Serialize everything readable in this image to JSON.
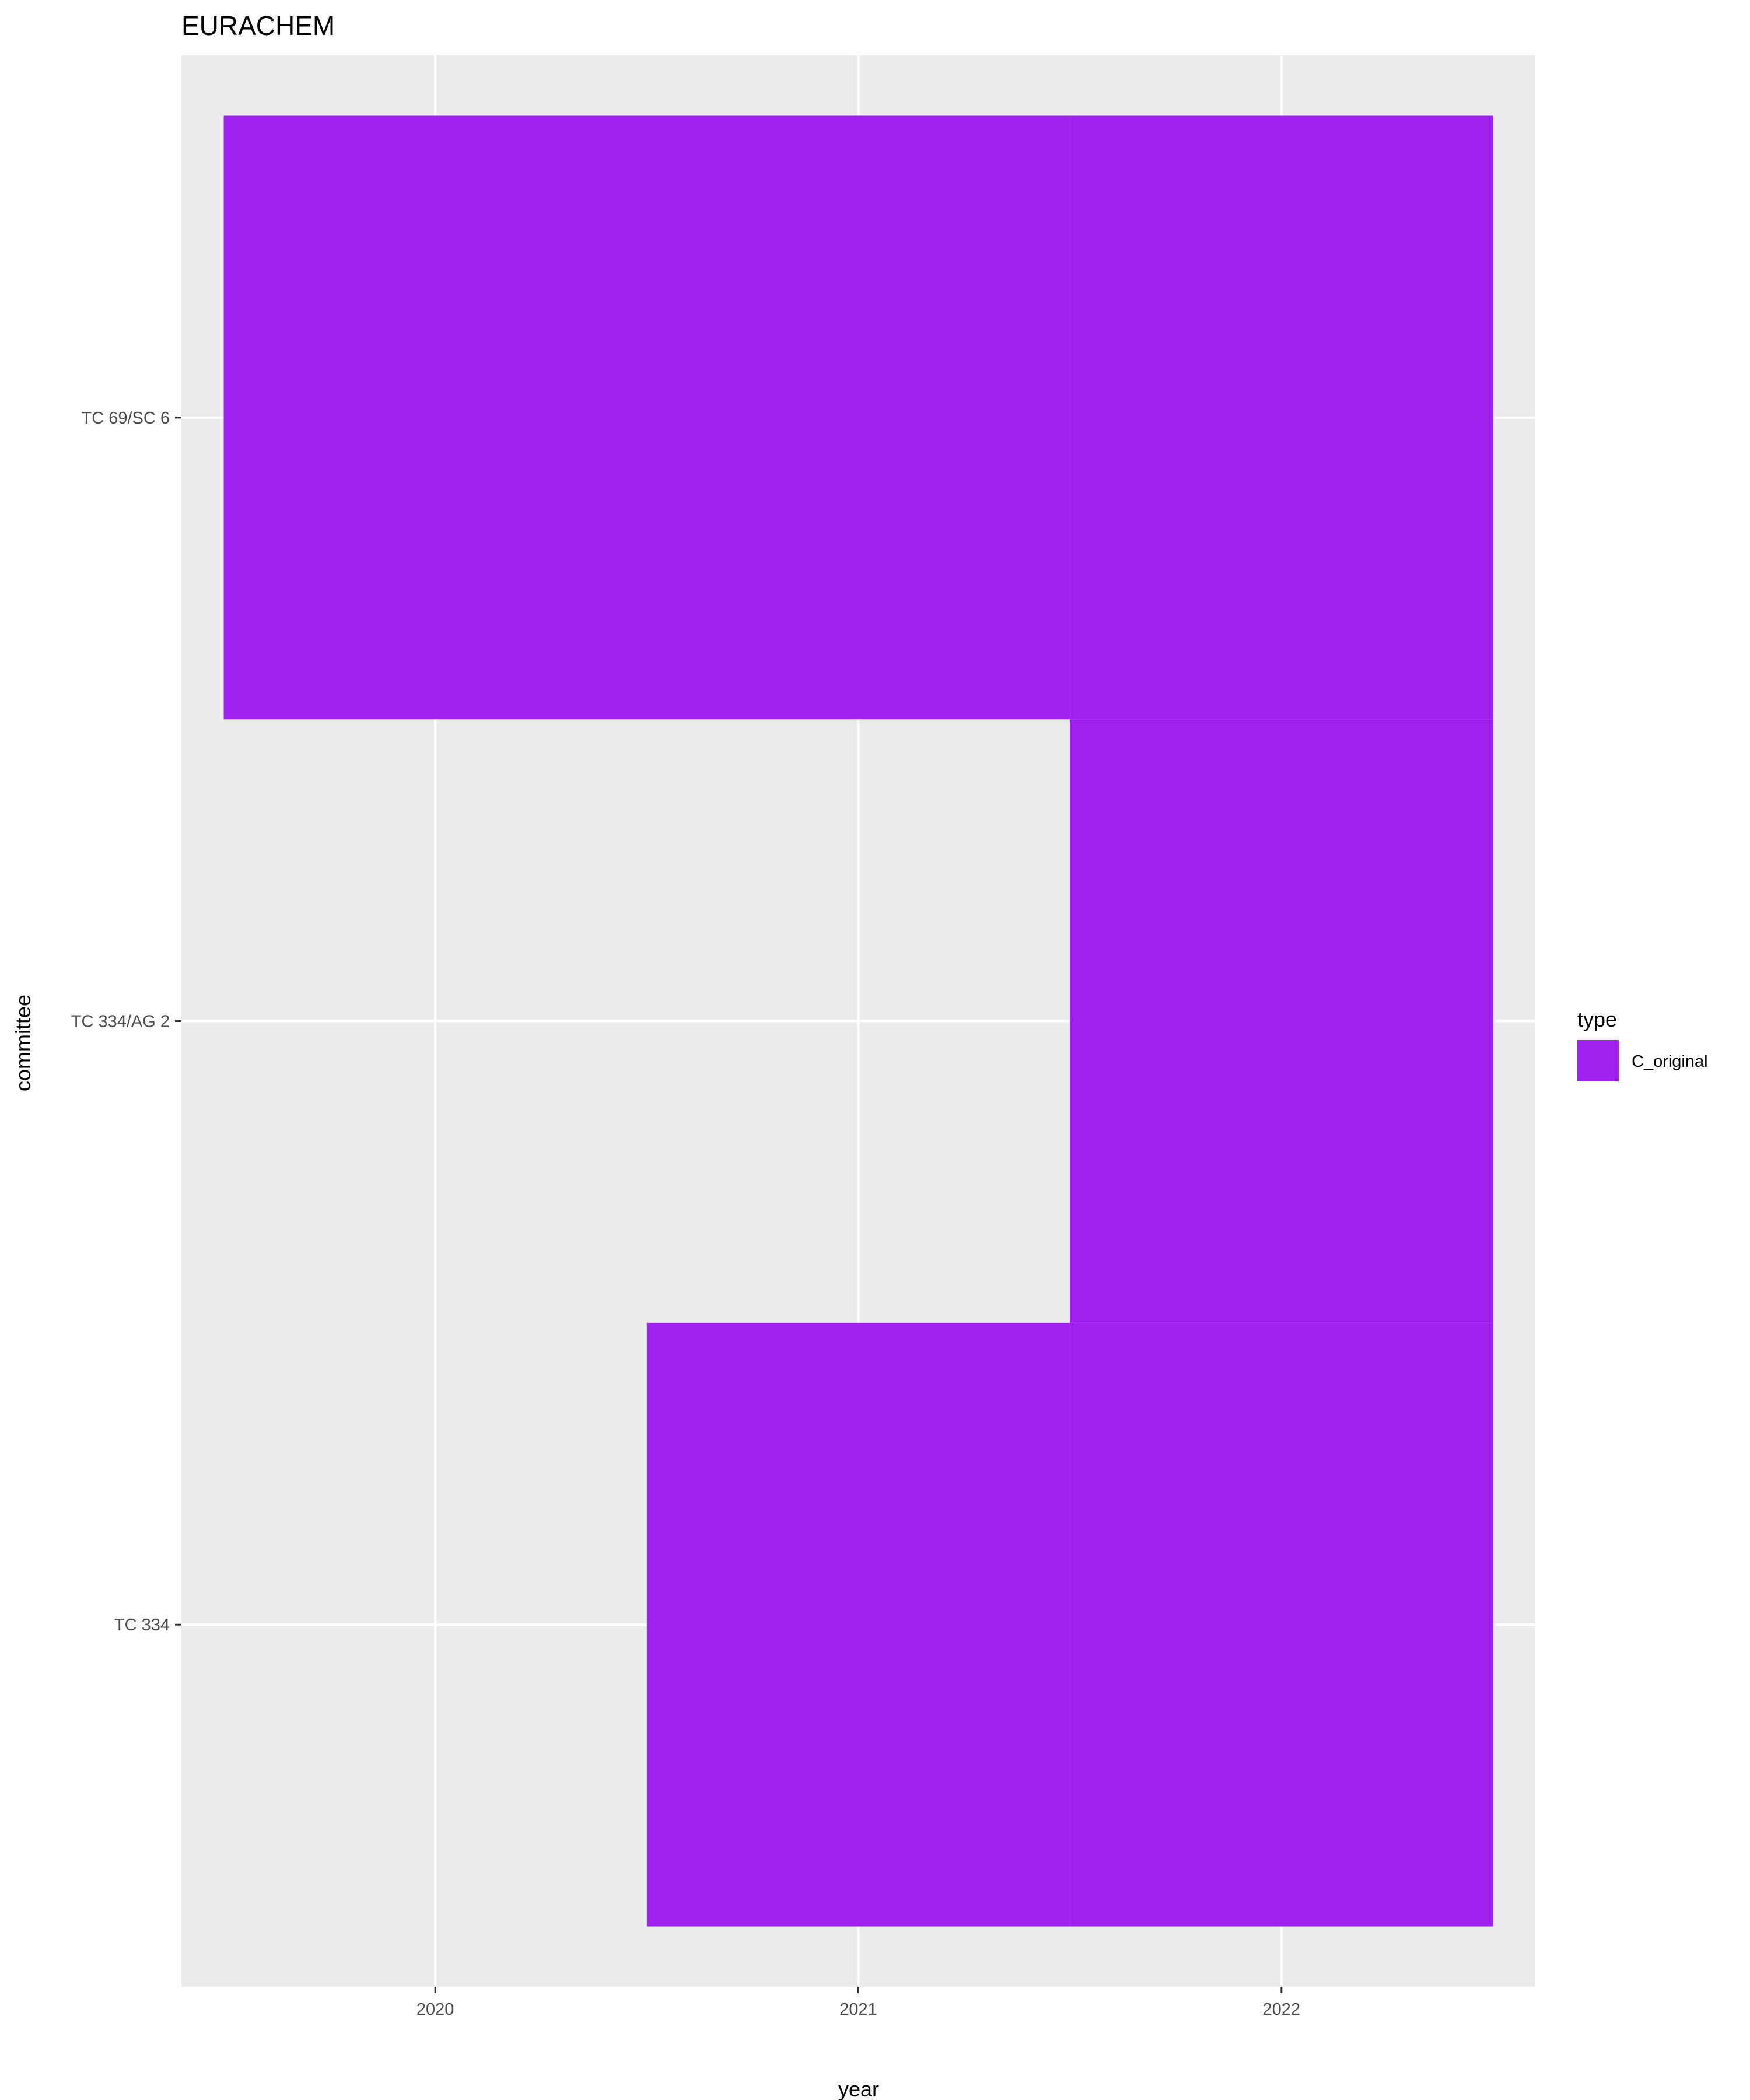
{
  "chart_data": {
    "type": "heatmap",
    "title": "EURACHEM",
    "xlabel": "year",
    "ylabel": "committee",
    "x_categories": [
      "2020",
      "2021",
      "2022"
    ],
    "y_categories": [
      "TC 334",
      "TC 334/AG 2",
      "TC 69/SC 6"
    ],
    "legend": {
      "title": "type",
      "entries": [
        {
          "label": "C_original",
          "color": "#a020f0"
        }
      ],
      "position": "right"
    },
    "cells": [
      {
        "committee": "TC 69/SC 6",
        "x_start": 2019.5,
        "x_end": 2021.5,
        "type": "C_original"
      },
      {
        "committee": "TC 69/SC 6",
        "x_start": 2021.5,
        "x_end": 2022.5,
        "type": "C_original"
      },
      {
        "committee": "TC 334/AG 2",
        "x_start": 2021.5,
        "x_end": 2022.5,
        "type": "C_original"
      },
      {
        "committee": "TC 334",
        "x_start": 2020.5,
        "x_end": 2021.5,
        "type": "C_original"
      },
      {
        "committee": "TC 334",
        "x_start": 2021.5,
        "x_end": 2022.5,
        "type": "C_original"
      }
    ],
    "xlim": [
      2019.4,
      2022.6
    ],
    "grid": true,
    "panel_background": "#ebebeb",
    "grid_color": "#ffffff"
  }
}
